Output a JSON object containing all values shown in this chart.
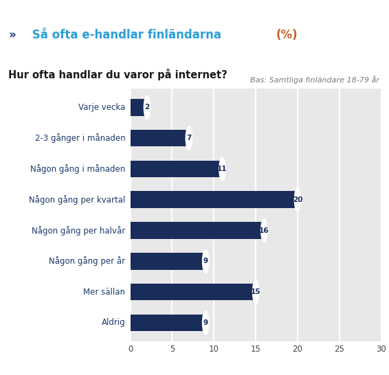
{
  "title_arrow": "»",
  "title_main": " Så ofta e-handlar finländarna ",
  "title_pct": "(%)",
  "subtitle": "Hur ofta handlar du varor på internet?",
  "note": "Bas: Samtliga finländare 18-79 år",
  "categories": [
    "Varje vecka",
    "2-3 gånger i månaden",
    "Någon gång i månaden",
    "Någon gång per kvartal",
    "Någon gång per halvår",
    "Någon gång per år",
    "Mer sällan",
    "Aldrig"
  ],
  "values": [
    2,
    7,
    11,
    20,
    16,
    9,
    15,
    9
  ],
  "bar_color": "#1a2d5a",
  "bar_height": 0.55,
  "xlim": [
    0,
    30
  ],
  "xticks": [
    0,
    5,
    10,
    15,
    20,
    25,
    30
  ],
  "arrow_color": "#1a3a6b",
  "title_color": "#2a9fd6",
  "title_pct_color": "#c75b2a",
  "subtitle_color": "#1a1a1a",
  "note_color": "#7a7a7a",
  "label_color": "#1a3a6b",
  "plot_bg_color": "#e8e8e8",
  "divider_color": "#2a9fd6",
  "circle_color": "#ffffff",
  "value_label_color": "#1a2d5a",
  "grid_color": "#ffffff"
}
